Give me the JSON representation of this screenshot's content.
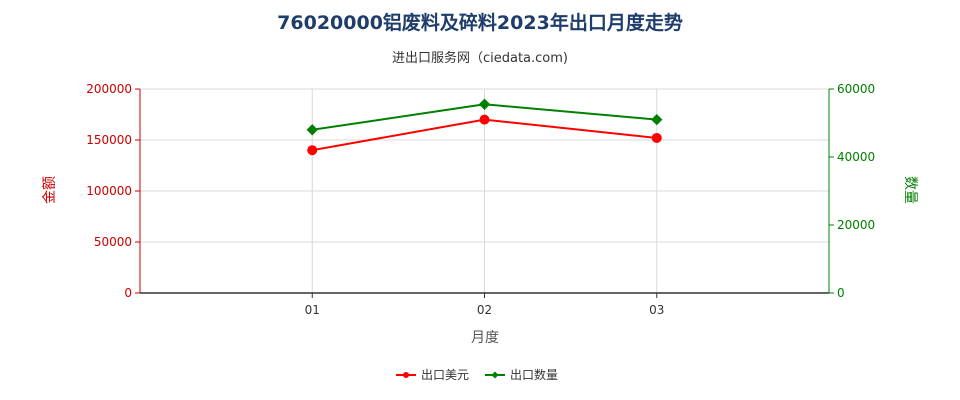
{
  "chart_data": {
    "type": "line",
    "title": "76020000铝废料及碎料2023年出口月度走势",
    "subtitle": "进出口服务网（ciedata.com)",
    "xlabel": "月度",
    "ylabel_left": "金额",
    "ylabel_right": "数量",
    "categories": [
      "01",
      "02",
      "03"
    ],
    "y_left": {
      "min": 0,
      "max": 200000,
      "ticks": [
        "0",
        "50000",
        "100000",
        "150000",
        "200000"
      ]
    },
    "y_right": {
      "min": 0,
      "max": 60000,
      "ticks": [
        "0",
        "20000",
        "40000",
        "60000"
      ]
    },
    "series": [
      {
        "name": "出口美元",
        "axis": "left",
        "color": "#ff0000",
        "marker": "circle",
        "values": [
          140000,
          170000,
          152000
        ]
      },
      {
        "name": "出口数量",
        "axis": "right",
        "color": "#008000",
        "marker": "diamond",
        "values": [
          48000,
          55500,
          51000
        ]
      }
    ],
    "grid": true,
    "legend_position": "bottom"
  }
}
